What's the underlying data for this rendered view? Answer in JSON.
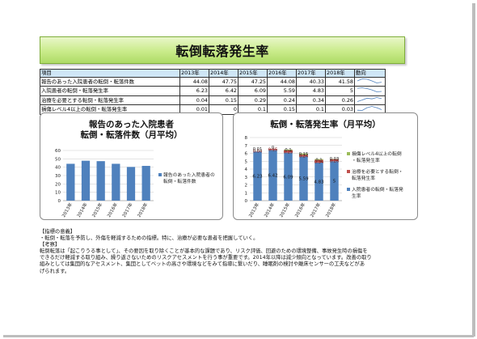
{
  "title": "転倒転落発生率",
  "table": {
    "headers": [
      "項目",
      "2013年",
      "2014年",
      "2015年",
      "2016年",
      "2017年",
      "2018年",
      "動向"
    ],
    "rows": [
      {
        "label": "報告のあった入院患者の転倒・転落件数",
        "values": [
          "44.08",
          "47.75",
          "47.25",
          "44.08",
          "40.33",
          "41.58"
        ],
        "trend": [
          44.08,
          47.75,
          47.25,
          44.08,
          40.33,
          41.58
        ]
      },
      {
        "label": "入院患者の転倒・転落発生率",
        "values": [
          "6.23",
          "6.42",
          "6.09",
          "5.59",
          "4.83",
          "5"
        ],
        "trend": [
          6.23,
          6.42,
          6.09,
          5.59,
          4.83,
          5
        ]
      },
      {
        "label": "治療を必要とする転倒・転落発生率",
        "values": [
          "0.04",
          "0.15",
          "0.29",
          "0.24",
          "0.34",
          "0.26"
        ],
        "trend": [
          0.04,
          0.15,
          0.29,
          0.24,
          0.34,
          0.26
        ]
      },
      {
        "label": "損傷レベル4以上の転倒・転落発生率",
        "values": [
          "0.01",
          "0",
          "0.1",
          "0.15",
          "0.1",
          "0.03"
        ],
        "trend": [
          0.01,
          0,
          0.1,
          0.15,
          0.1,
          0.03
        ]
      }
    ]
  },
  "chart_data": [
    {
      "type": "bar",
      "title_line1": "報告のあった入院患者",
      "title_line2": "転倒・転落件数（月平均）",
      "categories": [
        "2013年",
        "2014年",
        "2015年",
        "2016年",
        "2017年",
        "2018年"
      ],
      "series": [
        {
          "name": "報告のあった入院患者の転倒・転落件数",
          "values": [
            44.08,
            47.75,
            47.25,
            44.08,
            40.33,
            41.58
          ],
          "color": "#4f81bd"
        }
      ],
      "ylim": [
        0,
        60
      ],
      "yticks": [
        0,
        10,
        20,
        30,
        40,
        50,
        60
      ],
      "grid": true,
      "legend": "right"
    },
    {
      "type": "bar",
      "stacked": true,
      "title": "転倒・転落発生率（月平均）",
      "categories": [
        "2013年",
        "2014年",
        "2015年",
        "2016年",
        "2017年",
        "2018年"
      ],
      "series": [
        {
          "name": "入院患者の転倒・転落発生率",
          "values": [
            6.23,
            6.42,
            6.09,
            5.59,
            4.83,
            5
          ],
          "color": "#4f81bd",
          "labels": [
            "6.23",
            "6.42",
            "6.09",
            "5.59",
            "4.83",
            "5"
          ]
        },
        {
          "name": "治療を必要とする転倒・転落発生率",
          "values": [
            0.04,
            0.15,
            0.29,
            0.24,
            0.34,
            0.26
          ],
          "color": "#c0504d",
          "labels": [
            "0.04",
            "0.15",
            "0.29",
            "0.24",
            "0.34",
            "0.26"
          ]
        },
        {
          "name": "損傷レベル4以上の転倒・転落発生率",
          "values": [
            0.01,
            0,
            0.1,
            0.15,
            0.1,
            0.03
          ],
          "color": "#9bbb59",
          "labels": [
            "0.01",
            "0",
            "0.1",
            "0.15",
            "0.1",
            "0.03"
          ]
        }
      ],
      "ylim": [
        0,
        8
      ],
      "yticks": [
        0,
        1,
        2,
        3,
        4,
        5,
        6,
        7,
        8
      ],
      "grid": true,
      "legend": "right"
    }
  ],
  "notes": {
    "heading1": "【指標の意義】",
    "body1": "・転倒・転落を予防し、外傷を軽減するための指標。特に、治療が必要な患者を把握していく。",
    "heading2": "【考察】",
    "body2": "転倒転落は「起こりうる事として」、その要因を取り除くことが基本的な課題であり、リスク評価、回避のための環境整備、事故発生時の損傷を\nできるだけ軽減する取り組み、繰り返さないためのリスクアセスメントを行う事が重要です。2014年以降は減少傾向となっています。改善の取り\n組みとしては集団的なアセスメント、集団としてベットの高さや環境などをみて指導に繋いだり、睡眠剤の検討や離床センサーの工夫などがあ\nげられます。"
  }
}
